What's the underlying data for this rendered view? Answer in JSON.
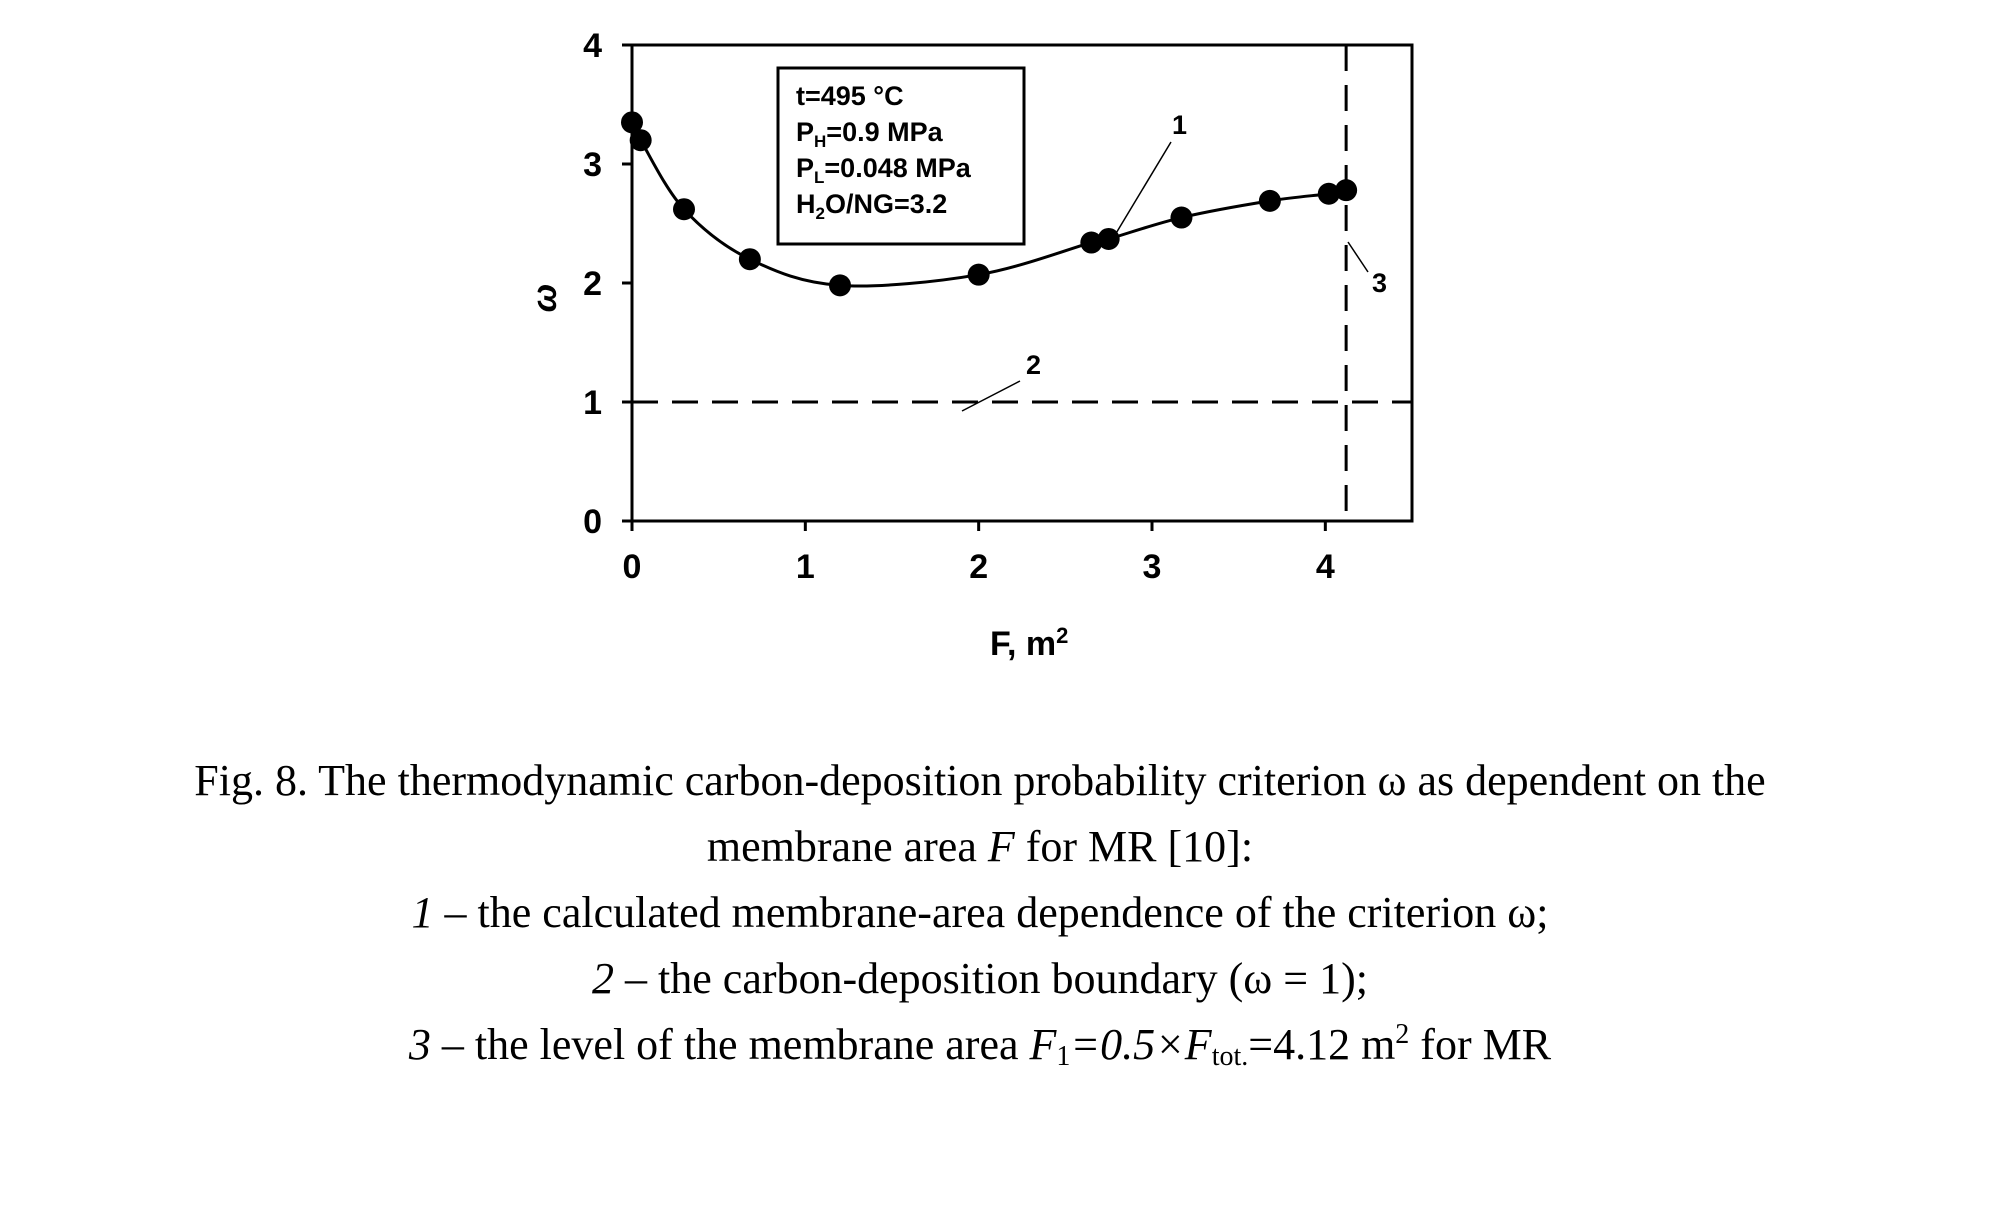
{
  "chart_data": {
    "type": "line",
    "xlabel_main": "F, m",
    "xlabel_sup": "2",
    "ylabel": "ω",
    "xlim": [
      0,
      4.5
    ],
    "ylim": [
      0,
      4
    ],
    "xticks": [
      0,
      1,
      2,
      3,
      4
    ],
    "yticks": [
      0,
      1,
      2,
      3,
      4
    ],
    "grid": false,
    "legend": "none",
    "series": [
      {
        "markers": true,
        "x": [
          0.0,
          0.05,
          0.3,
          0.68,
          1.2,
          2.0,
          2.65,
          2.75,
          3.17,
          3.68,
          4.02,
          4.12
        ],
        "y": [
          3.35,
          3.2,
          2.62,
          2.2,
          1.98,
          2.07,
          2.34,
          2.37,
          2.55,
          2.69,
          2.75,
          2.78
        ]
      }
    ],
    "hline": {
      "y": 1,
      "style": "dashed"
    },
    "vline": {
      "x": 4.12,
      "style": "dashed"
    },
    "annotation_box": {
      "lines": [
        {
          "main": "t=495 °C",
          "sub": "",
          "rest": ""
        },
        {
          "main": "P",
          "sub": "H",
          "rest": "=0.9 MPa"
        },
        {
          "main": "P",
          "sub": "L",
          "rest": "=0.048 MPa"
        },
        {
          "main": "H",
          "sub": "2",
          "rest": "O/NG=3.2"
        }
      ]
    },
    "curve_labels": [
      "1",
      "2",
      "3"
    ]
  },
  "caption": {
    "line1": "Fig. 8. The thermodynamic carbon-deposition probability criterion ω as dependent on the",
    "line2_a": "membrane area ",
    "line2_F": "F",
    "line2_b": " for MR [10]:",
    "line3_num": "1",
    "line3_text": " – the calculated membrane-area dependence of the criterion ω;",
    "line4_num": "2",
    "line4_text": " – the carbon-deposition boundary (ω = 1);",
    "line5_num": "3",
    "line5_text": " – the level of the membrane area ",
    "line5_F1": "F",
    "line5_F1_sub": "1",
    "line5_eq": "=0.5×",
    "line5_Ftot": "F",
    "line5_Ftot_sub": "tot.",
    "line5_val": "=4.12 m",
    "line5_sup": "2",
    "line5_end": " for MR"
  }
}
